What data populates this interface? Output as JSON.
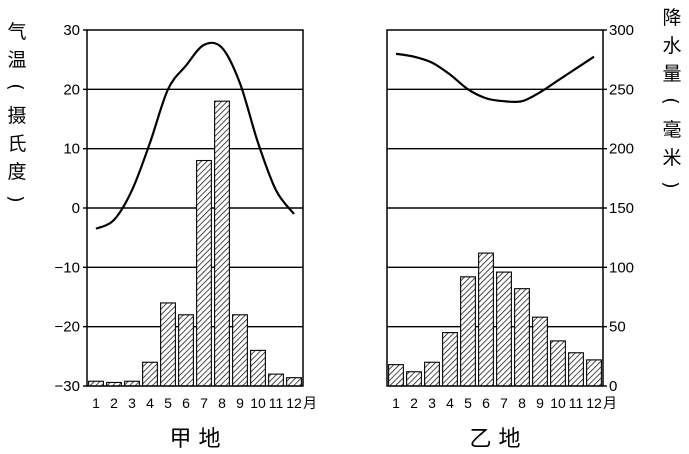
{
  "chart_data": [
    {
      "type": "bar+line",
      "panel": "甲地",
      "panel_label": "甲 地",
      "month_labels": [
        "1",
        "2",
        "3",
        "4",
        "5",
        "6",
        "7",
        "8",
        "9",
        "10",
        "11",
        "12"
      ],
      "month_unit": "月",
      "temperature_axis": {
        "label_chars": [
          "气",
          "温",
          "(",
          "摄",
          "氏",
          "度",
          ")"
        ],
        "ylim": [
          -30,
          30
        ],
        "ticks": [
          -30,
          -20,
          -10,
          0,
          10,
          20,
          30
        ],
        "tick_labels": [
          "−30",
          "−20",
          "−10",
          "0",
          "10",
          "20",
          "30"
        ]
      },
      "temperature_c": [
        -3.5,
        -2,
        3,
        11,
        20,
        24,
        27.5,
        27,
        21,
        11,
        3,
        -1
      ],
      "precipitation_mm": [
        4,
        3,
        4,
        20,
        70,
        60,
        190,
        240,
        60,
        30,
        10,
        7
      ]
    },
    {
      "type": "bar+line",
      "panel": "乙地",
      "panel_label": "乙 地",
      "month_labels": [
        "1",
        "2",
        "3",
        "4",
        "5",
        "6",
        "7",
        "8",
        "9",
        "10",
        "11",
        "12"
      ],
      "month_unit": "月",
      "precipitation_axis": {
        "label_chars": [
          "降",
          "水",
          "量",
          "(",
          "毫",
          "米",
          ")"
        ],
        "ylim": [
          0,
          300
        ],
        "ticks": [
          0,
          50,
          100,
          150,
          200,
          250,
          300
        ],
        "tick_labels": [
          "0",
          "50",
          "100",
          "150",
          "200",
          "250",
          "300"
        ]
      },
      "temperature_c": [
        26,
        25.5,
        24.5,
        22.5,
        20,
        18.5,
        18,
        18,
        19.5,
        21.5,
        23.5,
        25.5
      ],
      "precipitation_mm": [
        18,
        12,
        20,
        45,
        92,
        112,
        96,
        82,
        58,
        38,
        28,
        22
      ]
    }
  ]
}
